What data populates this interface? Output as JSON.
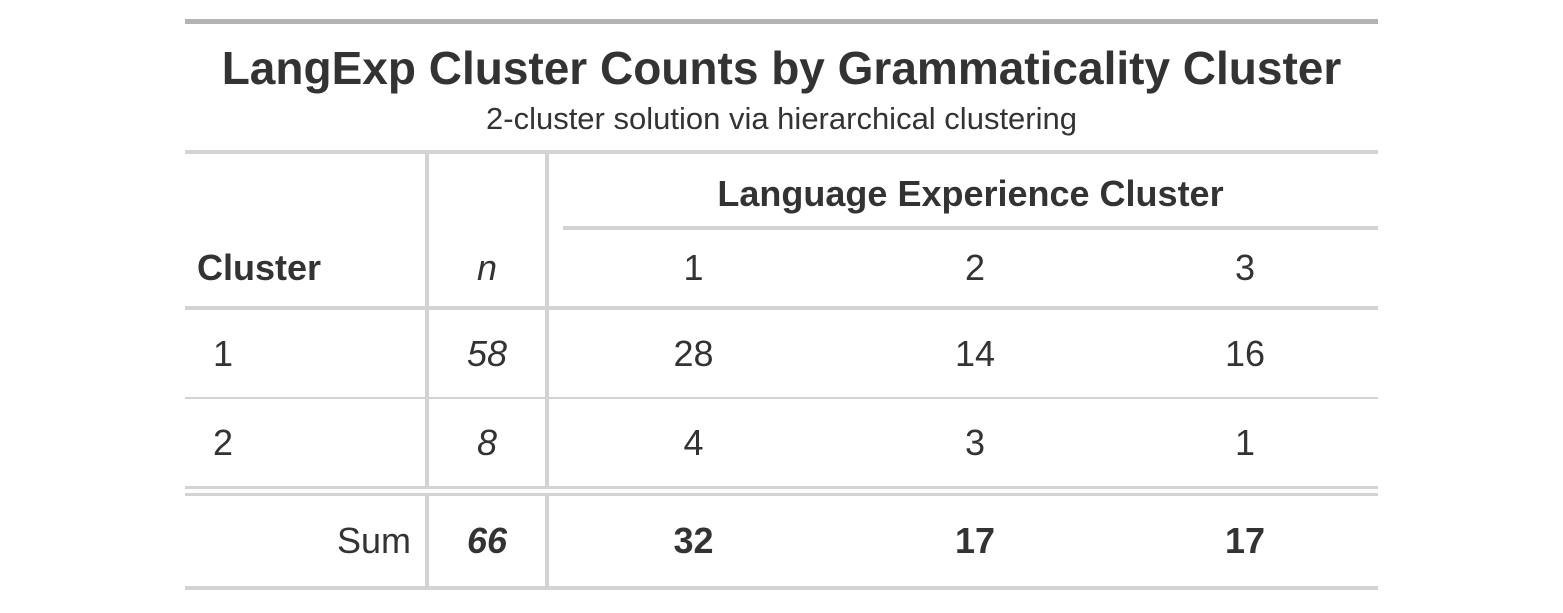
{
  "title": "LangExp Cluster Counts by Grammaticality Cluster",
  "subtitle": "2-cluster solution via hierarchical clustering",
  "spanner_label": "Language Experience Cluster",
  "columns": {
    "cluster": "Cluster",
    "n": "n",
    "g1": "1",
    "g2": "2",
    "g3": "3"
  },
  "rows": [
    {
      "cluster": "1",
      "n": "58",
      "g1": "28",
      "g2": "14",
      "g3": "16"
    },
    {
      "cluster": "2",
      "n": "8",
      "g1": "4",
      "g2": "3",
      "g3": "1"
    }
  ],
  "summary": {
    "label": "Sum",
    "n": "66",
    "g1": "32",
    "g2": "17",
    "g3": "17"
  }
}
